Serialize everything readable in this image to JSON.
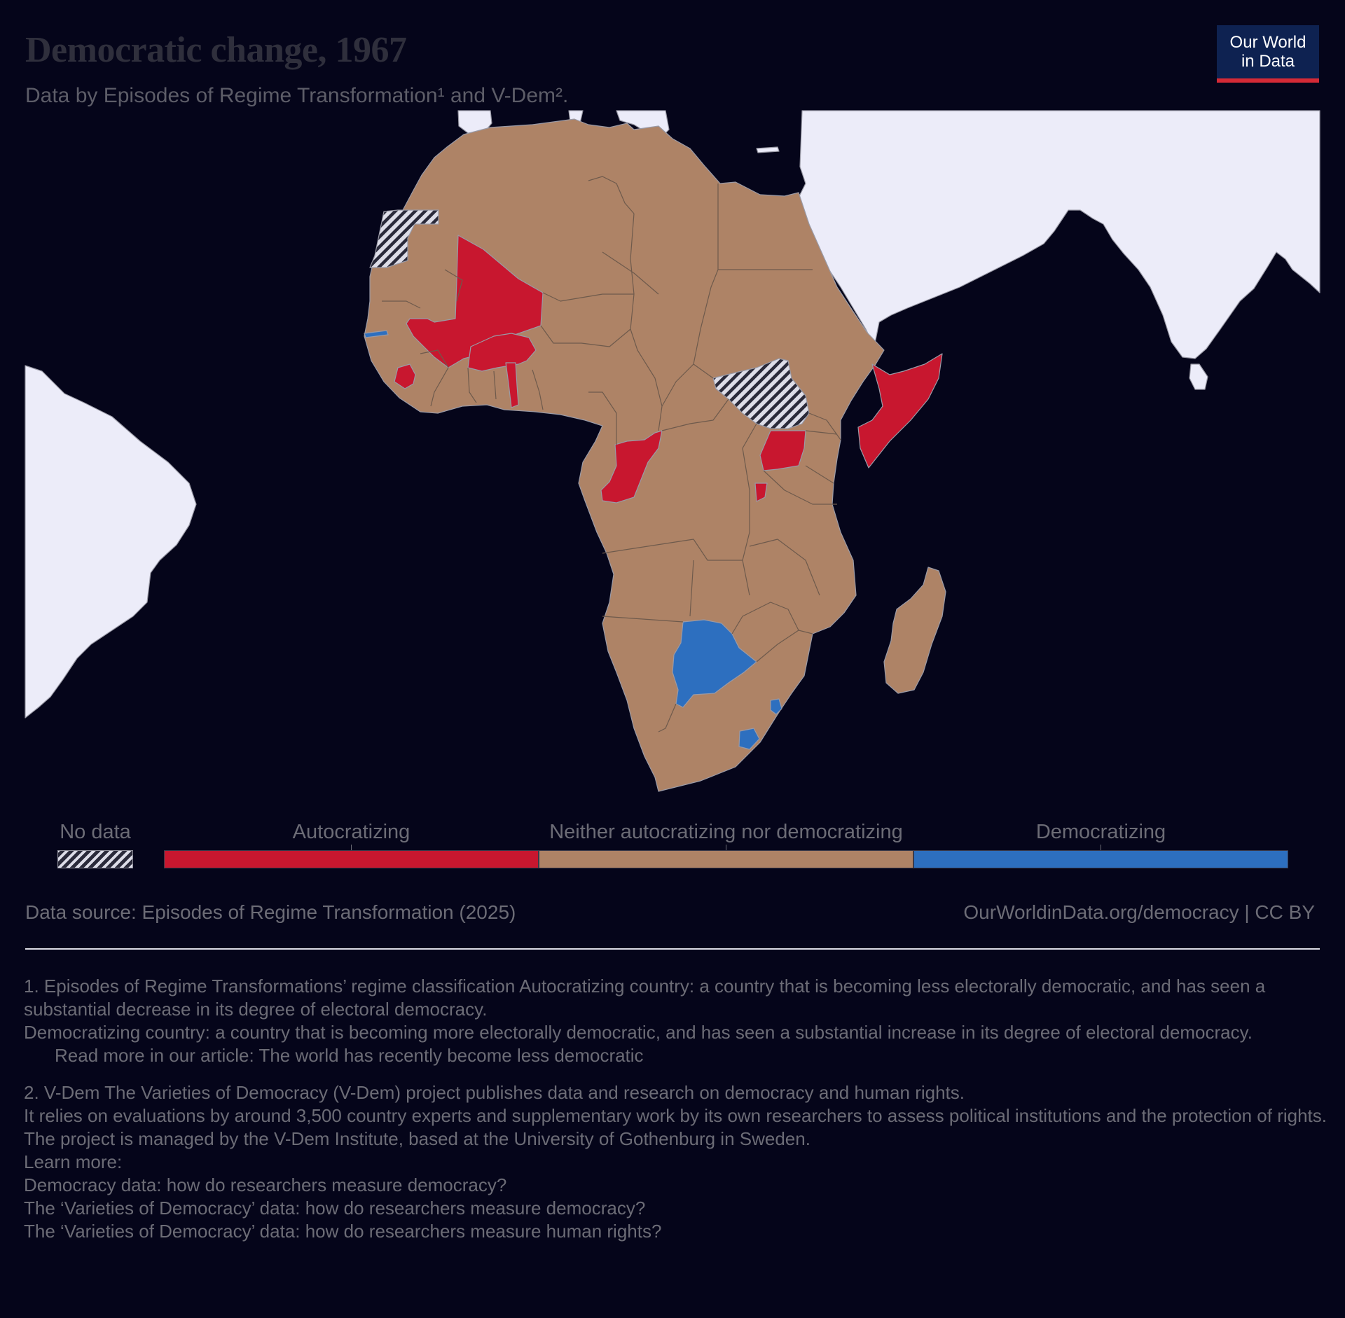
{
  "header": {
    "title": "Democratic change, 1967",
    "subtitle": "Data by Episodes of Regime Transformation¹ and V-Dem².",
    "logo_line1": "Our World",
    "logo_line2": "in Data"
  },
  "colors": {
    "background": "#05051a",
    "autocratizing": "#c8172f",
    "neither": "#ae8366",
    "democratizing": "#2d6fbf",
    "other_land": "#ececf9",
    "logo_bg": "#0e2251",
    "logo_accent": "#d42a36"
  },
  "legend": {
    "no_data": "No data",
    "categories": [
      "Autocratizing",
      "Neither autocratizing nor democratizing",
      "Democratizing"
    ]
  },
  "map_data": {
    "year": 1967,
    "region": "Africa",
    "autocratizing": [
      "Mali",
      "Burkina Faso",
      "Sierra Leone",
      "Togo",
      "Republic of the Congo",
      "Uganda",
      "Burundi",
      "Somalia"
    ],
    "democratizing": [
      "Botswana",
      "Gambia",
      "Eswatini",
      "Lesotho"
    ],
    "no_data": [
      "Western Sahara",
      "South Sudan"
    ],
    "neither_autocratizing_nor_democratizing": [
      "Morocco",
      "Algeria",
      "Tunisia",
      "Libya",
      "Egypt",
      "Mauritania",
      "Senegal",
      "Guinea",
      "Liberia",
      "Ivory Coast",
      "Ghana",
      "Benin",
      "Niger",
      "Nigeria",
      "Chad",
      "Sudan",
      "Ethiopia",
      "Kenya",
      "Cameroon",
      "Central African Republic",
      "Gabon",
      "DR Congo",
      "Tanzania",
      "Angola",
      "Zambia",
      "Malawi",
      "Mozambique",
      "Zimbabwe",
      "Namibia",
      "South Africa",
      "Madagascar"
    ]
  },
  "footer": {
    "source": "Data source: Episodes of Regime Transformation (2025)",
    "url": "OurWorldinData.org/democracy | CC BY"
  },
  "notes": {
    "note1_a": "1. Episodes of Regime Transformations’ regime classification Autocratizing country: a country that is becoming less electorally democratic, and has seen a substantial decrease in its degree of electoral democracy.",
    "note1_b": "Democratizing country: a country that is becoming more electorally democratic, and has seen a substantial increase in its degree of electoral democracy.",
    "note1_c": "Read more in our article: The world has recently become less democratic",
    "note2_a": "2. V-Dem The Varieties of Democracy (V-Dem) project publishes data and research on democracy and human rights.",
    "note2_b": "It relies on evaluations by around 3,500 country experts and supplementary work by its own researchers to assess political institutions and the protection of rights.",
    "note2_c": "The project is managed by the V-Dem Institute, based at the University of Gothenburg in Sweden.",
    "note2_d": "Learn more:",
    "note2_e": "Democracy data: how do researchers measure democracy?",
    "note2_f": "The ‘Varieties of Democracy’ data: how do researchers measure democracy?",
    "note2_g": "The ‘Varieties of Democracy’ data: how do researchers measure human rights?"
  }
}
